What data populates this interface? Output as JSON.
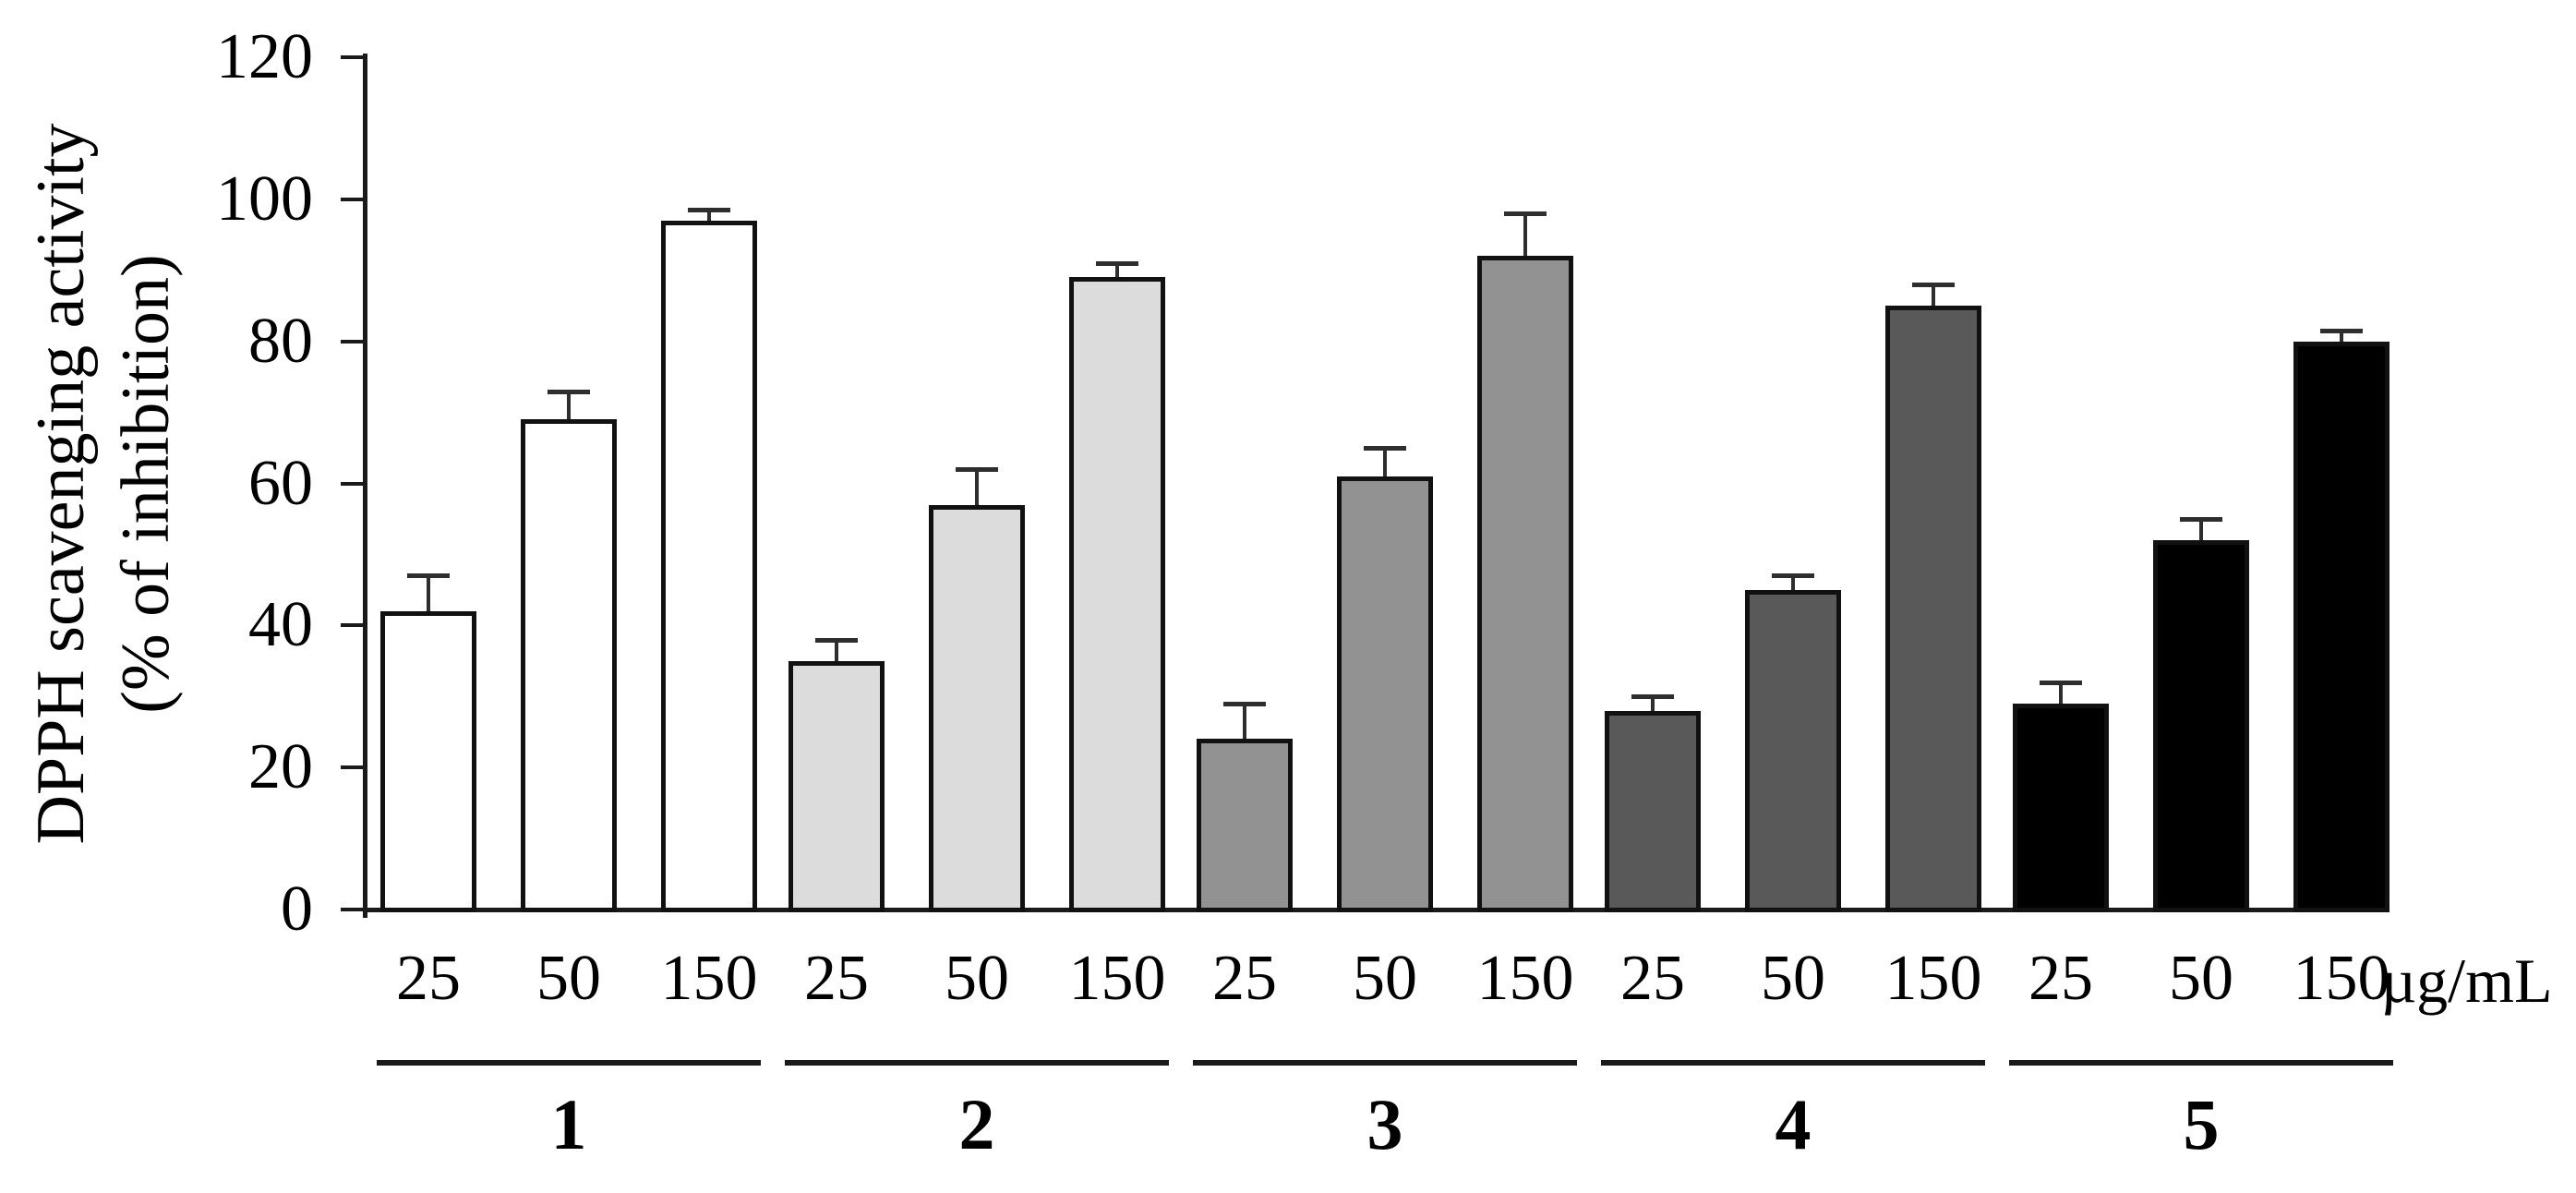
{
  "chart_data": {
    "type": "bar",
    "title": "",
    "ylabel_line1": "DPPH scavenging activity",
    "ylabel_line2": "(% of inhibition)",
    "unit_label": "µg/mL",
    "ylim": [
      0,
      120
    ],
    "yticks": [
      0,
      20,
      40,
      60,
      80,
      100,
      120
    ],
    "grid": false,
    "legend": false,
    "concentrations": [
      "25",
      "50",
      "150"
    ],
    "groups": [
      {
        "label": "1",
        "color": "#ffffff",
        "values": [
          42,
          69,
          97
        ],
        "errors": [
          5,
          4,
          1.5
        ]
      },
      {
        "label": "2",
        "color": "#dcdcdc",
        "values": [
          35,
          57,
          89
        ],
        "errors": [
          3,
          5,
          2
        ]
      },
      {
        "label": "3",
        "color": "#929292",
        "values": [
          24,
          61,
          92
        ],
        "errors": [
          5,
          4,
          6
        ]
      },
      {
        "label": "4",
        "color": "#595959",
        "values": [
          28,
          45,
          85
        ],
        "errors": [
          2,
          2,
          3
        ]
      },
      {
        "label": "5",
        "color": "#000000",
        "values": [
          29,
          52,
          80
        ],
        "errors": [
          3,
          3,
          1.5
        ]
      }
    ]
  }
}
